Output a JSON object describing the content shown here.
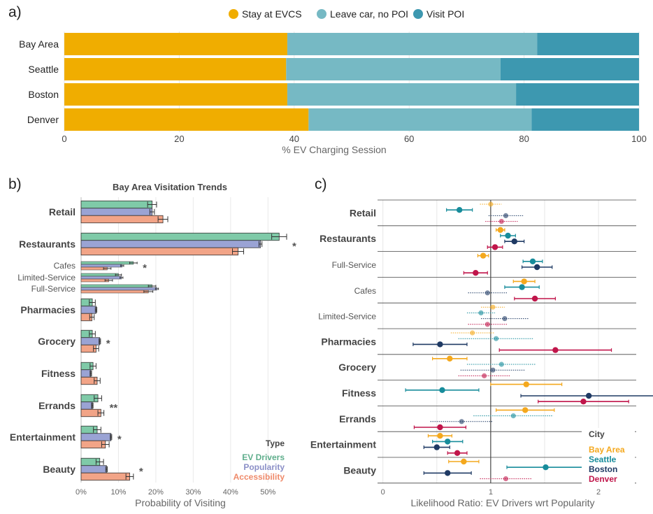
{
  "panels": {
    "a_label": "a)",
    "b_label": "b)",
    "c_label": "c)"
  },
  "colors": {
    "stay": "#f0ad00",
    "leave": "#76b9c4",
    "visit": "#3d98b0",
    "ev_drivers": "#7fcaa8",
    "popularity": "#9aa3d4",
    "accessibility": "#f2a487",
    "bay_area": "#f4a81d",
    "seattle": "#178c9b",
    "boston": "#1f3a64",
    "denver": "#c0154a",
    "ev_text": "#5fae8c",
    "pop_text": "#8b8fc7",
    "acc_text": "#ef8a6a"
  },
  "chart_data": [
    {
      "type": "bar",
      "orientation": "horizontal",
      "stacked": true,
      "categories": [
        "Bay Area",
        "Seattle",
        "Boston",
        "Denver"
      ],
      "series": [
        {
          "name": "Stay at EVCS",
          "values": [
            38.8,
            38.6,
            38.8,
            42.5
          ]
        },
        {
          "name": "Leave car, no POI",
          "values": [
            43.5,
            37.3,
            39.8,
            38.8
          ]
        },
        {
          "name": "Visit POI",
          "values": [
            17.7,
            24.1,
            21.4,
            18.7
          ]
        }
      ],
      "xlabel": "% EV Charging Session",
      "xlim": [
        0,
        100
      ],
      "xticks": [
        "0",
        "20",
        "40",
        "60",
        "80",
        "100"
      ],
      "legend": "top"
    },
    {
      "type": "bar",
      "orientation": "horizontal",
      "title": "Bay Area Visitation Trends",
      "xlabel": "Probability of Visiting",
      "xlim": [
        0,
        55
      ],
      "xticks": [
        "0%",
        "10%",
        "20%",
        "30%",
        "40%",
        "50%"
      ],
      "legend_title": "Type",
      "series_names": [
        "EV Drivers",
        "Popularity",
        "Accessibility"
      ],
      "categories": [
        {
          "label": "Retail",
          "main": true,
          "values": [
            19.0,
            19.0,
            21.9
          ],
          "err": [
            1.2,
            0.6,
            1.3
          ],
          "sig": ""
        },
        {
          "label": "Restaurants",
          "main": true,
          "values": [
            53.0,
            48.0,
            42.0
          ],
          "err": [
            2.0,
            0.4,
            1.5
          ],
          "sig": "*"
        },
        {
          "label": "Cafes",
          "main": false,
          "values": [
            14.0,
            11.0,
            7.0
          ],
          "err": [
            1.0,
            0.4,
            1.0
          ],
          "sig": "*"
        },
        {
          "label": "Limited-Service",
          "main": false,
          "values": [
            10.0,
            10.8,
            7.4
          ],
          "err": [
            0.8,
            0.4,
            1.0
          ],
          "sig": ""
        },
        {
          "label": "Full-Service",
          "main": false,
          "values": [
            19.0,
            20.3,
            18.0
          ],
          "err": [
            1.0,
            0.4,
            1.2
          ],
          "sig": ""
        },
        {
          "label": "Pharmacies",
          "main": true,
          "values": [
            3.0,
            4.0,
            2.9
          ],
          "err": [
            0.8,
            0.2,
            0.6
          ],
          "sig": ""
        },
        {
          "label": "Grocery",
          "main": true,
          "values": [
            3.0,
            5.0,
            4.0
          ],
          "err": [
            0.8,
            0.2,
            0.7
          ],
          "sig": "*"
        },
        {
          "label": "Fitness",
          "main": true,
          "values": [
            3.2,
            2.6,
            4.3
          ],
          "err": [
            0.8,
            0.2,
            0.8
          ],
          "sig": ""
        },
        {
          "label": "Errands",
          "main": true,
          "values": [
            4.5,
            3.0,
            5.3
          ],
          "err": [
            1.0,
            0.2,
            0.8
          ],
          "sig": "**"
        },
        {
          "label": "Entertainment",
          "main": true,
          "values": [
            4.3,
            8.0,
            6.5
          ],
          "err": [
            1.0,
            0.2,
            1.0
          ],
          "sig": "*"
        },
        {
          "label": "Beauty",
          "main": true,
          "values": [
            5.0,
            6.8,
            13.0
          ],
          "err": [
            1.0,
            0.2,
            1.0
          ],
          "sig": "*"
        }
      ]
    },
    {
      "type": "scatter",
      "subtype": "dot-and-whisker",
      "xlabel": "Likelihood Ratio: EV Drivers wrt Popularity",
      "xlim": [
        -0.05,
        2.35
      ],
      "xticks": [
        "0",
        "1",
        "2"
      ],
      "reference_line": 1,
      "legend_title": "City",
      "series_names": [
        "Bay Area",
        "Seattle",
        "Boston",
        "Denver"
      ],
      "categories": [
        {
          "label": "Retail",
          "main": true,
          "points": [
            [
              1.0,
              0.1,
              false
            ],
            [
              0.71,
              0.12,
              true
            ],
            [
              1.14,
              0.16,
              false
            ],
            [
              1.1,
              0.15,
              false
            ]
          ]
        },
        {
          "label": "Restaurants",
          "main": true,
          "points": [
            [
              1.09,
              0.04,
              true
            ],
            [
              1.16,
              0.07,
              true
            ],
            [
              1.22,
              0.09,
              true
            ],
            [
              1.04,
              0.07,
              true
            ]
          ]
        },
        {
          "label": "Full-Service",
          "main": false,
          "points": [
            [
              0.93,
              0.05,
              true
            ],
            [
              1.39,
              0.09,
              true
            ],
            [
              1.43,
              0.14,
              true
            ],
            [
              0.86,
              0.11,
              true
            ]
          ]
        },
        {
          "label": "Cafes",
          "main": false,
          "points": [
            [
              1.31,
              0.1,
              true
            ],
            [
              1.29,
              0.16,
              true
            ],
            [
              0.97,
              0.18,
              false
            ],
            [
              1.41,
              0.19,
              true
            ]
          ]
        },
        {
          "label": "Limited-Service",
          "main": false,
          "points": [
            [
              1.02,
              0.11,
              false
            ],
            [
              0.91,
              0.13,
              false
            ],
            [
              1.13,
              0.22,
              false
            ],
            [
              0.97,
              0.18,
              false
            ]
          ]
        },
        {
          "label": "Pharmacies",
          "main": true,
          "points": [
            [
              0.83,
              0.2,
              false
            ],
            [
              1.05,
              0.35,
              false
            ],
            [
              0.53,
              0.25,
              true
            ],
            [
              1.6,
              0.52,
              true
            ]
          ]
        },
        {
          "label": "Grocery",
          "main": true,
          "points": [
            [
              0.62,
              0.16,
              true
            ],
            [
              1.1,
              0.32,
              false
            ],
            [
              1.02,
              0.3,
              false
            ],
            [
              0.94,
              0.24,
              false
            ]
          ]
        },
        {
          "label": "Fitness",
          "main": true,
          "points": [
            [
              1.33,
              0.33,
              true
            ],
            [
              0.55,
              0.34,
              true
            ],
            [
              1.91,
              0.63,
              true
            ],
            [
              1.86,
              0.42,
              true
            ]
          ]
        },
        {
          "label": "Errands",
          "main": true,
          "points": [
            [
              1.32,
              0.27,
              true
            ],
            [
              1.21,
              0.37,
              false
            ],
            [
              0.73,
              0.29,
              false
            ],
            [
              0.53,
              0.24,
              true
            ]
          ]
        },
        {
          "label": "Entertainment",
          "main": true,
          "points": [
            [
              0.53,
              0.11,
              true
            ],
            [
              0.6,
              0.14,
              true
            ],
            [
              0.5,
              0.12,
              true
            ],
            [
              0.69,
              0.09,
              true
            ]
          ]
        },
        {
          "label": "Beauty",
          "main": true,
          "points": [
            [
              0.75,
              0.14,
              true
            ],
            [
              1.51,
              0.36,
              true
            ],
            [
              0.6,
              0.22,
              true
            ],
            [
              1.14,
              0.24,
              false
            ]
          ]
        }
      ]
    }
  ]
}
